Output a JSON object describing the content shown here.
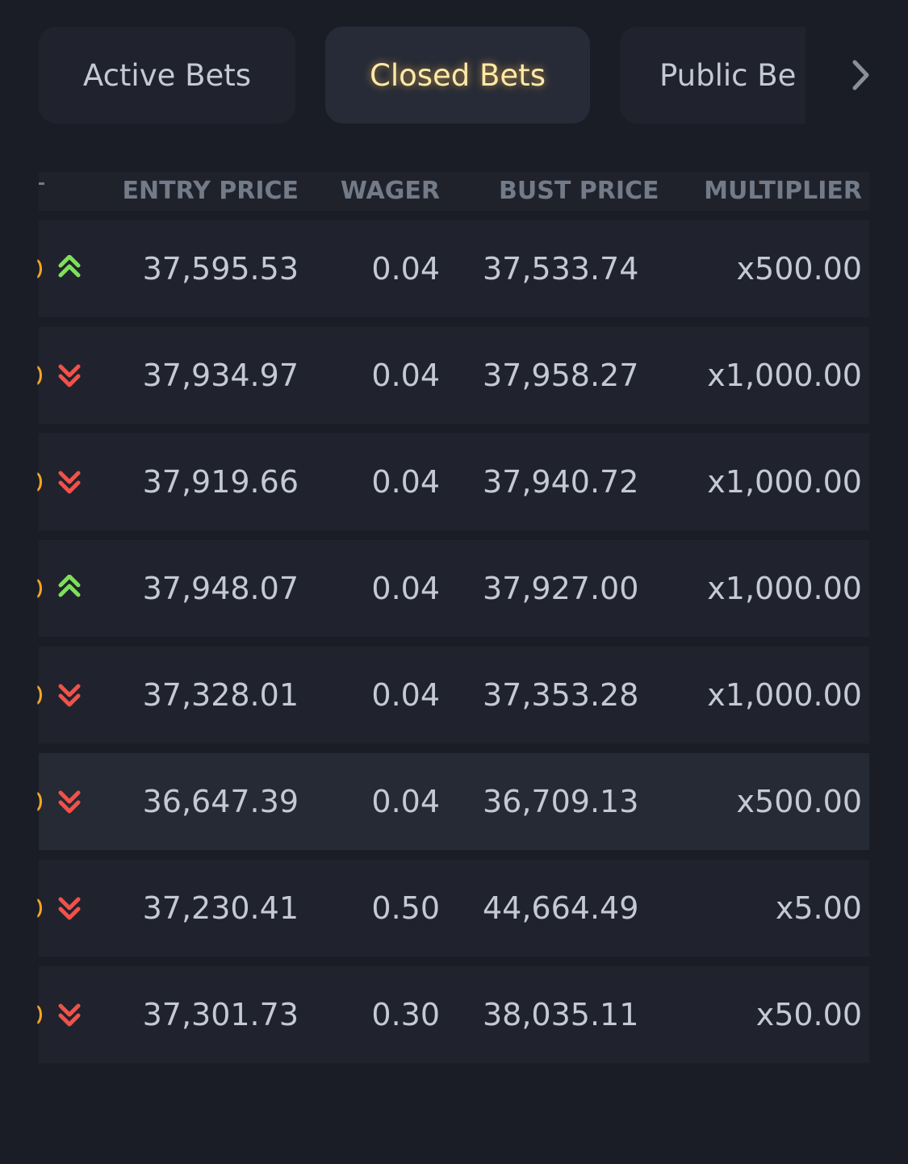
{
  "tabs": {
    "items": [
      "Active Bets",
      "Closed Bets",
      "Public Be"
    ],
    "active": 1
  },
  "table": {
    "headers": [
      "ENTRY PRICE",
      "WAGER",
      "BUST PRICE",
      "MULTIPLIER"
    ],
    "highlighted_row": 5,
    "rows": [
      {
        "direction": "up",
        "cells": [
          "37,595.53",
          "0.04",
          "37,533.74",
          "x500.00"
        ]
      },
      {
        "direction": "down",
        "cells": [
          "37,934.97",
          "0.04",
          "37,958.27",
          "x1,000.00"
        ]
      },
      {
        "direction": "down",
        "cells": [
          "37,919.66",
          "0.04",
          "37,940.72",
          "x1,000.00"
        ]
      },
      {
        "direction": "up",
        "cells": [
          "37,948.07",
          "0.04",
          "37,927.00",
          "x1,000.00"
        ]
      },
      {
        "direction": "down",
        "cells": [
          "37,328.01",
          "0.04",
          "37,353.28",
          "x1,000.00"
        ]
      },
      {
        "direction": "down",
        "cells": [
          "36,647.39",
          "0.04",
          "36,709.13",
          "x500.00"
        ]
      },
      {
        "direction": "down",
        "cells": [
          "37,230.41",
          "0.50",
          "44,664.49",
          "x5.00"
        ]
      },
      {
        "direction": "down",
        "cells": [
          "37,301.73",
          "0.30",
          "38,035.11",
          "x50.00"
        ]
      }
    ]
  }
}
